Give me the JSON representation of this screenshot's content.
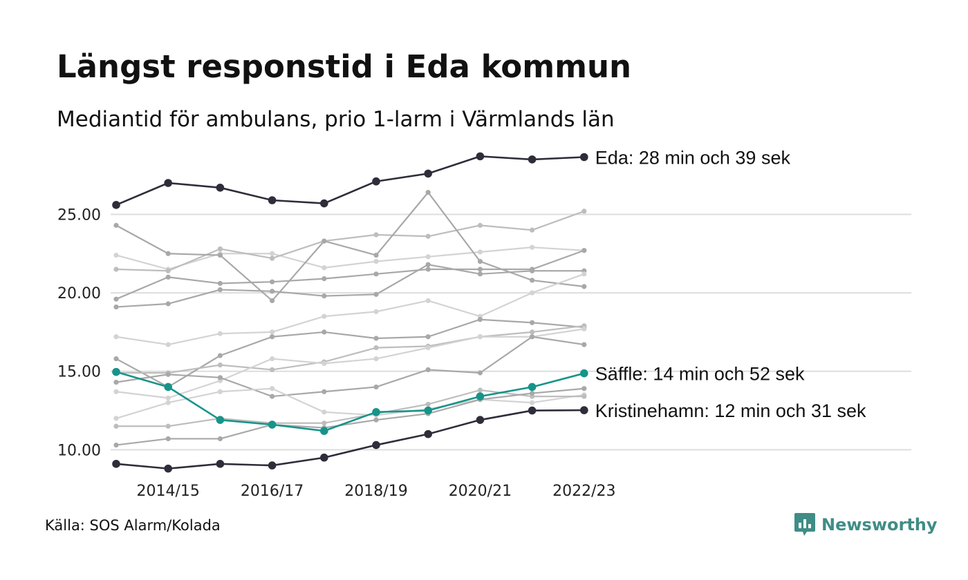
{
  "title": "Längst responstid i Eda kommun",
  "subtitle": "Mediantid för ambulans, prio 1-larm i Värmlands län",
  "source": "Källa: SOS Alarm/Kolada",
  "brand": {
    "name": "Newsworthy",
    "icon": "newsworthy-logo-icon",
    "color": "#3f8d86"
  },
  "colors": {
    "highlight": "#2e2d3a",
    "accent": "#17948a",
    "grid": "#dddddd"
  },
  "chart_data": {
    "type": "line",
    "title": "Längst responstid i Eda kommun",
    "subtitle": "Mediantid för ambulans, prio 1-larm i Värmlands län",
    "xlabel": "",
    "ylabel": "",
    "x": [
      "2013/14",
      "2014/15",
      "2015/16",
      "2016/17",
      "2017/18",
      "2018/19",
      "2019/20",
      "2020/21",
      "2021/22",
      "2022/23"
    ],
    "x_ticks": [
      "2014/15",
      "2016/17",
      "2018/19",
      "2020/21",
      "2022/23"
    ],
    "y_ticks": [
      "10.00",
      "15.00",
      "20.00",
      "25.00"
    ],
    "y_tick_values": [
      10,
      15,
      20,
      25
    ],
    "ylim": [
      8.3,
      29.2
    ],
    "grid": "horizontal",
    "legend": "none",
    "series": [
      {
        "name": "",
        "color": "#d3d3d3",
        "values": [
          22.4,
          21.5,
          22.5,
          22.5,
          21.6,
          22.0,
          22.3,
          22.6,
          22.9,
          22.7
        ]
      },
      {
        "name": "",
        "color": "#bdbdbd",
        "values": [
          21.5,
          21.4,
          22.8,
          22.2,
          23.3,
          23.7,
          23.6,
          24.3,
          24.0,
          25.2
        ]
      },
      {
        "name": "",
        "color": "#a8a8a8",
        "values": [
          24.3,
          22.5,
          22.4,
          19.5,
          23.3,
          22.4,
          26.4,
          22.0,
          20.8,
          20.4
        ]
      },
      {
        "name": "",
        "color": "#a8a8a8",
        "values": [
          19.6,
          21.0,
          20.6,
          20.7,
          20.9,
          21.2,
          21.5,
          21.5,
          21.5,
          22.7
        ]
      },
      {
        "name": "",
        "color": "#a8a8a8",
        "values": [
          19.1,
          19.3,
          20.2,
          20.1,
          19.8,
          19.9,
          21.8,
          21.2,
          21.4,
          21.4
        ]
      },
      {
        "name": "",
        "color": "#d3d3d3",
        "values": [
          17.2,
          16.7,
          17.4,
          17.5,
          18.5,
          18.8,
          19.5,
          18.5,
          20.0,
          21.2
        ]
      },
      {
        "name": "",
        "color": "#a8a8a8",
        "values": [
          15.8,
          14.0,
          16.0,
          17.2,
          17.5,
          17.1,
          17.2,
          18.3,
          18.1,
          17.8
        ]
      },
      {
        "name": "",
        "color": "#bdbdbd",
        "values": [
          14.9,
          14.9,
          15.4,
          15.1,
          15.6,
          16.5,
          16.6,
          17.2,
          17.5,
          17.9
        ]
      },
      {
        "name": "",
        "color": "#d3d3d3",
        "values": [
          13.7,
          13.3,
          14.4,
          15.8,
          15.5,
          15.8,
          16.5,
          17.2,
          17.2,
          17.7
        ]
      },
      {
        "name": "",
        "color": "#a8a8a8",
        "values": [
          14.3,
          14.8,
          14.6,
          13.4,
          13.7,
          14.0,
          15.1,
          14.9,
          17.2,
          16.7
        ]
      },
      {
        "name": "",
        "color": "#d3d3d3",
        "values": [
          12.0,
          13.0,
          13.7,
          13.9,
          12.4,
          12.2,
          12.6,
          13.2,
          13.0,
          13.5
        ]
      },
      {
        "name": "",
        "color": "#bdbdbd",
        "values": [
          11.5,
          11.5,
          12.0,
          11.7,
          11.7,
          12.3,
          12.9,
          13.8,
          13.4,
          13.4
        ]
      },
      {
        "name": "",
        "color": "#a8a8a8",
        "values": [
          10.3,
          10.7,
          10.7,
          11.6,
          11.4,
          11.9,
          12.3,
          13.2,
          13.6,
          13.9
        ]
      },
      {
        "name": "Säffle",
        "label": "Säffle: 14 min och 52 sek",
        "color": "#17948a",
        "values": [
          14.96,
          14.0,
          11.9,
          11.6,
          11.2,
          12.4,
          12.5,
          13.4,
          14.0,
          14.87
        ]
      },
      {
        "name": "Kristinehamn",
        "label": "Kristinehamn: 12 min och 31 sek",
        "color": "#2e2d3a",
        "values": [
          9.1,
          8.8,
          9.1,
          9.0,
          9.5,
          10.3,
          11.0,
          11.9,
          12.5,
          12.52
        ]
      },
      {
        "name": "Eda",
        "label": "Eda: 28 min och 39 sek",
        "color": "#2e2d3a",
        "values": [
          25.6,
          27.0,
          26.7,
          25.9,
          25.7,
          27.1,
          27.6,
          28.7,
          28.5,
          28.65
        ]
      }
    ]
  }
}
